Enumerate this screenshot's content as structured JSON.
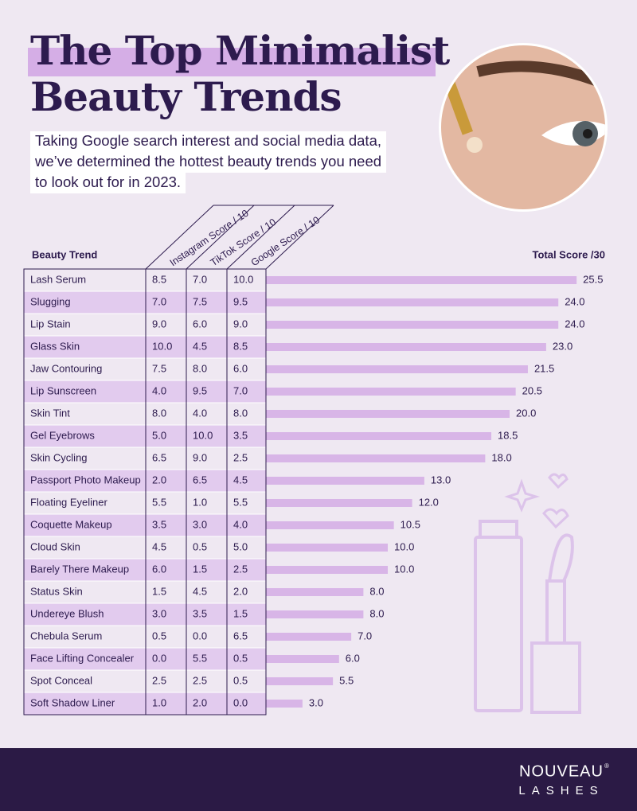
{
  "chart_data": {
    "type": "bar",
    "title_lines": [
      "The Top Minimalist",
      "Beauty Trends"
    ],
    "subtitle_lines": [
      "Taking Google search interest and social media data,",
      "we’ve determined the hottest beauty trends you need",
      "to look out for in 2023."
    ],
    "category_header": "Beauty Trend",
    "value_header": "Total Score /30",
    "categories": [
      "Lash Serum",
      "Slugging",
      "Lip Stain",
      "Glass Skin",
      "Jaw Contouring",
      "Lip Sunscreen",
      "Skin Tint",
      "Gel Eyebrows",
      "Skin Cycling",
      "Passport Photo Makeup",
      "Floating Eyeliner",
      "Coquette Makeup",
      "Cloud Skin",
      "Barely There Makeup",
      "Status Skin",
      "Undereye Blush",
      "Chebula Serum",
      "Face Lifting Concealer",
      "Spot Conceal",
      "Soft Shadow Liner"
    ],
    "score_columns": [
      {
        "name": "Instagram Score / 10",
        "values": [
          "8.5",
          "7.0",
          "9.0",
          "10.0",
          "7.5",
          "4.0",
          "8.0",
          "5.0",
          "6.5",
          "2.0",
          "5.5",
          "3.5",
          "4.5",
          "6.0",
          "1.5",
          "3.0",
          "0.5",
          "0.0",
          "2.5",
          "1.0"
        ]
      },
      {
        "name": "TikTok Score / 10",
        "values": [
          "7.0",
          "7.5",
          "6.0",
          "4.5",
          "8.0",
          "9.5",
          "4.0",
          "10.0",
          "9.0",
          "6.5",
          "1.0",
          "3.0",
          "0.5",
          "1.5",
          "4.5",
          "3.5",
          "0.0",
          "5.5",
          "2.5",
          "2.0"
        ]
      },
      {
        "name": "Google Score / 10",
        "values": [
          "10.0",
          "9.5",
          "9.0",
          "8.5",
          "6.0",
          "7.0",
          "8.0",
          "3.5",
          "2.5",
          "4.5",
          "5.5",
          "4.0",
          "5.0",
          "2.5",
          "2.0",
          "1.5",
          "6.5",
          "0.5",
          "0.5",
          "0.0"
        ]
      }
    ],
    "values": [
      25.5,
      24,
      24,
      23,
      21.5,
      20.5,
      20,
      18.5,
      18,
      13,
      12,
      10.5,
      10,
      10,
      8,
      8,
      7,
      6,
      5.5,
      3
    ],
    "value_labels": [
      "25.5",
      "24.0",
      "24.0",
      "23.0",
      "21.5",
      "20.5",
      "20.0",
      "18.5",
      "18.0",
      "13.0",
      "12.0",
      "10.5",
      "10.0",
      "10.0",
      "8.0",
      "8.0",
      "7.0",
      "6.0",
      "5.5",
      "3.0"
    ],
    "xlim": [
      0,
      30
    ],
    "color": "#d8b5e7",
    "stripe_color": "#e2cbee",
    "brand": {
      "name": "NOUVEAU",
      "mark": "®",
      "sub": "LASHES"
    }
  }
}
